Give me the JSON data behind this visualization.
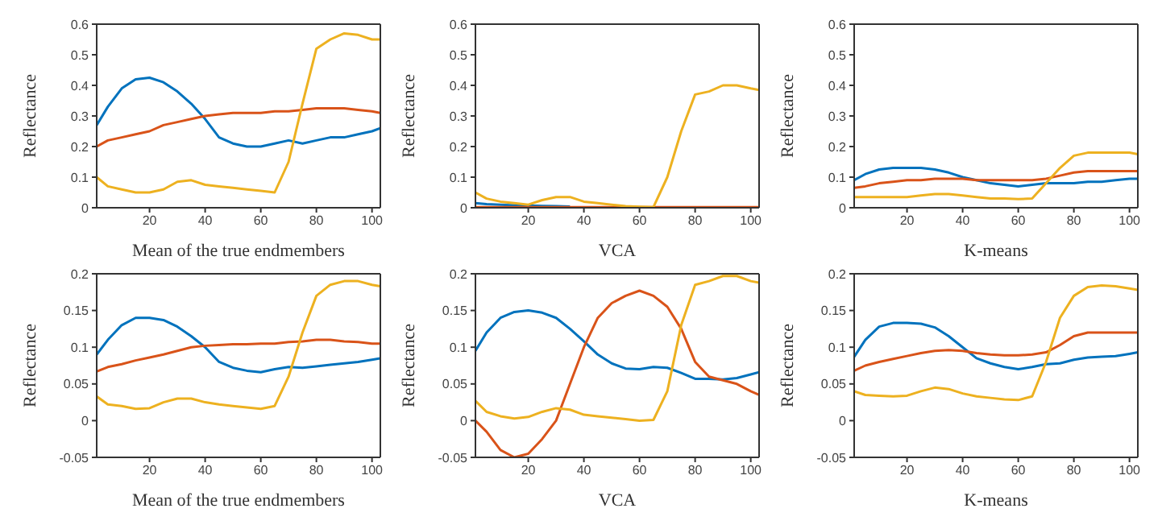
{
  "chart_data": [
    {
      "type": "line",
      "xlabel": "Mean of the true endmembers",
      "ylabel": "Reflectance",
      "xlim": [
        1,
        103
      ],
      "xticks": [
        20,
        40,
        60,
        80,
        100
      ],
      "ylim": [
        0,
        0.6
      ],
      "yticks": [
        0,
        0.1,
        0.2,
        0.3,
        0.4,
        0.5,
        0.6
      ],
      "x": [
        1,
        5,
        10,
        15,
        20,
        25,
        30,
        35,
        40,
        45,
        50,
        55,
        60,
        65,
        70,
        75,
        80,
        85,
        90,
        95,
        100,
        103
      ],
      "series": [
        {
          "color": "#0072bd",
          "values": [
            0.27,
            0.33,
            0.39,
            0.42,
            0.425,
            0.41,
            0.38,
            0.34,
            0.29,
            0.23,
            0.21,
            0.2,
            0.2,
            0.21,
            0.22,
            0.21,
            0.22,
            0.23,
            0.23,
            0.24,
            0.25,
            0.26
          ]
        },
        {
          "color": "#d95319",
          "values": [
            0.2,
            0.22,
            0.23,
            0.24,
            0.25,
            0.27,
            0.28,
            0.29,
            0.3,
            0.305,
            0.31,
            0.31,
            0.31,
            0.315,
            0.315,
            0.32,
            0.325,
            0.325,
            0.325,
            0.32,
            0.315,
            0.31
          ]
        },
        {
          "color": "#edb120",
          "values": [
            0.1,
            0.07,
            0.06,
            0.05,
            0.05,
            0.06,
            0.085,
            0.09,
            0.075,
            0.07,
            0.065,
            0.06,
            0.055,
            0.05,
            0.15,
            0.34,
            0.52,
            0.55,
            0.57,
            0.565,
            0.55,
            0.55
          ]
        }
      ]
    },
    {
      "type": "line",
      "xlabel": "VCA",
      "ylabel": "Reflectance",
      "xlim": [
        1,
        103
      ],
      "xticks": [
        20,
        40,
        60,
        80,
        100
      ],
      "ylim": [
        0,
        0.6
      ],
      "yticks": [
        0,
        0.1,
        0.2,
        0.3,
        0.4,
        0.5,
        0.6
      ],
      "x": [
        1,
        5,
        10,
        15,
        20,
        25,
        30,
        35,
        40,
        45,
        50,
        55,
        60,
        65,
        70,
        75,
        80,
        85,
        90,
        95,
        100,
        103
      ],
      "series": [
        {
          "color": "#0072bd",
          "values": [
            0.015,
            0.012,
            0.01,
            0.008,
            0.007,
            0.006,
            0.005,
            0.004,
            null,
            null,
            null,
            null,
            null,
            null,
            null,
            null,
            null,
            null,
            null,
            null,
            null,
            null
          ]
        },
        {
          "color": "#d95319",
          "values": [
            0.002,
            0.002,
            0.002,
            0.002,
            0.002,
            0.002,
            0.002,
            0.002,
            0.002,
            0.002,
            0.002,
            0.002,
            0.002,
            0.002,
            0.002,
            0.002,
            0.002,
            0.002,
            0.002,
            0.002,
            0.002,
            0.002
          ]
        },
        {
          "color": "#edb120",
          "values": [
            0.05,
            0.03,
            0.02,
            0.015,
            0.01,
            0.025,
            0.035,
            0.035,
            0.02,
            0.015,
            0.01,
            0.005,
            0.003,
            0.002,
            0.1,
            0.25,
            0.37,
            0.38,
            0.4,
            0.4,
            0.39,
            0.385
          ]
        }
      ]
    },
    {
      "type": "line",
      "xlabel": "K-means",
      "ylabel": "Reflectance",
      "xlim": [
        1,
        103
      ],
      "xticks": [
        20,
        40,
        60,
        80,
        100
      ],
      "ylim": [
        0,
        0.6
      ],
      "yticks": [
        0,
        0.1,
        0.2,
        0.3,
        0.4,
        0.5,
        0.6
      ],
      "x": [
        1,
        5,
        10,
        15,
        20,
        25,
        30,
        35,
        40,
        45,
        50,
        55,
        60,
        65,
        70,
        75,
        80,
        85,
        90,
        95,
        100,
        103
      ],
      "series": [
        {
          "color": "#0072bd",
          "values": [
            0.09,
            0.11,
            0.125,
            0.13,
            0.13,
            0.13,
            0.125,
            0.115,
            0.1,
            0.09,
            0.08,
            0.075,
            0.07,
            0.075,
            0.08,
            0.08,
            0.08,
            0.085,
            0.085,
            0.09,
            0.095,
            0.095
          ]
        },
        {
          "color": "#d95319",
          "values": [
            0.065,
            0.07,
            0.08,
            0.085,
            0.09,
            0.09,
            0.095,
            0.095,
            0.095,
            0.09,
            0.09,
            0.09,
            0.09,
            0.09,
            0.095,
            0.105,
            0.115,
            0.12,
            0.12,
            0.12,
            0.12,
            0.12
          ]
        },
        {
          "color": "#edb120",
          "values": [
            0.035,
            0.035,
            0.035,
            0.035,
            0.035,
            0.04,
            0.045,
            0.045,
            0.04,
            0.035,
            0.03,
            0.03,
            0.028,
            0.03,
            0.08,
            0.13,
            0.17,
            0.18,
            0.18,
            0.18,
            0.18,
            0.175
          ]
        }
      ]
    },
    {
      "type": "line",
      "xlabel": "Mean of the true endmembers",
      "ylabel": "Reflectance",
      "xlim": [
        1,
        103
      ],
      "xticks": [
        20,
        40,
        60,
        80,
        100
      ],
      "ylim": [
        -0.05,
        0.2
      ],
      "yticks": [
        -0.05,
        0,
        0.05,
        0.1,
        0.15,
        0.2
      ],
      "x": [
        1,
        5,
        10,
        15,
        20,
        25,
        30,
        35,
        40,
        45,
        50,
        55,
        60,
        65,
        70,
        75,
        80,
        85,
        90,
        95,
        100,
        103
      ],
      "series": [
        {
          "color": "#0072bd",
          "values": [
            0.09,
            0.11,
            0.13,
            0.14,
            0.14,
            0.137,
            0.128,
            0.115,
            0.1,
            0.08,
            0.072,
            0.068,
            0.066,
            0.07,
            0.073,
            0.072,
            0.074,
            0.076,
            0.078,
            0.08,
            0.083,
            0.085
          ]
        },
        {
          "color": "#d95319",
          "values": [
            0.067,
            0.073,
            0.077,
            0.082,
            0.086,
            0.09,
            0.095,
            0.1,
            0.102,
            0.103,
            0.104,
            0.104,
            0.105,
            0.105,
            0.107,
            0.108,
            0.11,
            0.11,
            0.108,
            0.107,
            0.105,
            0.105
          ]
        },
        {
          "color": "#edb120",
          "values": [
            0.033,
            0.022,
            0.02,
            0.016,
            0.017,
            0.025,
            0.03,
            0.03,
            0.025,
            0.022,
            0.02,
            0.018,
            0.016,
            0.02,
            0.06,
            0.12,
            0.17,
            0.185,
            0.19,
            0.19,
            0.185,
            0.183
          ]
        }
      ]
    },
    {
      "type": "line",
      "xlabel": "VCA",
      "ylabel": "Reflectance",
      "xlim": [
        1,
        103
      ],
      "xticks": [
        20,
        40,
        60,
        80,
        100
      ],
      "ylim": [
        -0.05,
        0.2
      ],
      "yticks": [
        -0.05,
        0,
        0.05,
        0.1,
        0.15,
        0.2
      ],
      "x": [
        1,
        5,
        10,
        15,
        20,
        25,
        30,
        35,
        40,
        45,
        50,
        55,
        60,
        65,
        70,
        75,
        80,
        85,
        90,
        95,
        100,
        103
      ],
      "series": [
        {
          "color": "#0072bd",
          "values": [
            0.095,
            0.12,
            0.14,
            0.148,
            0.15,
            0.147,
            0.14,
            0.125,
            0.108,
            0.09,
            0.078,
            0.071,
            0.07,
            0.073,
            0.072,
            0.065,
            0.057,
            0.057,
            0.056,
            0.058,
            0.063,
            0.066
          ]
        },
        {
          "color": "#d95319",
          "values": [
            0,
            -0.015,
            -0.04,
            -0.05,
            -0.045,
            -0.025,
            0,
            0.05,
            0.1,
            0.14,
            0.16,
            0.17,
            0.177,
            0.17,
            0.155,
            0.125,
            0.08,
            0.06,
            0.055,
            0.05,
            0.04,
            0.035
          ]
        },
        {
          "color": "#edb120",
          "values": [
            0.027,
            0.012,
            0.006,
            0.003,
            0.005,
            0.012,
            0.017,
            0.015,
            0.008,
            0.006,
            0.004,
            0.002,
            0,
            0.001,
            0.04,
            0.13,
            0.185,
            0.19,
            0.197,
            0.197,
            0.19,
            0.188
          ]
        }
      ]
    },
    {
      "type": "line",
      "xlabel": "K-means",
      "ylabel": "Reflectance",
      "xlim": [
        1,
        103
      ],
      "xticks": [
        20,
        40,
        60,
        80,
        100
      ],
      "ylim": [
        -0.05,
        0.2
      ],
      "yticks": [
        -0.05,
        0,
        0.05,
        0.1,
        0.15,
        0.2
      ],
      "x": [
        1,
        5,
        10,
        15,
        20,
        25,
        30,
        35,
        40,
        45,
        50,
        55,
        60,
        65,
        70,
        75,
        80,
        85,
        90,
        95,
        100,
        103
      ],
      "series": [
        {
          "color": "#0072bd",
          "values": [
            0.087,
            0.11,
            0.128,
            0.133,
            0.133,
            0.132,
            0.127,
            0.115,
            0.1,
            0.085,
            0.078,
            0.073,
            0.07,
            0.073,
            0.077,
            0.078,
            0.083,
            0.086,
            0.087,
            0.088,
            0.091,
            0.093
          ]
        },
        {
          "color": "#d95319",
          "values": [
            0.068,
            0.075,
            0.08,
            0.084,
            0.088,
            0.092,
            0.095,
            0.096,
            0.095,
            0.092,
            0.09,
            0.089,
            0.089,
            0.09,
            0.093,
            0.103,
            0.115,
            0.12,
            0.12,
            0.12,
            0.12,
            0.12
          ]
        },
        {
          "color": "#edb120",
          "values": [
            0.04,
            0.035,
            0.034,
            0.033,
            0.034,
            0.04,
            0.045,
            0.043,
            0.037,
            0.033,
            0.031,
            0.029,
            0.028,
            0.033,
            0.08,
            0.14,
            0.17,
            0.182,
            0.184,
            0.183,
            0.18,
            0.178
          ]
        }
      ]
    }
  ]
}
